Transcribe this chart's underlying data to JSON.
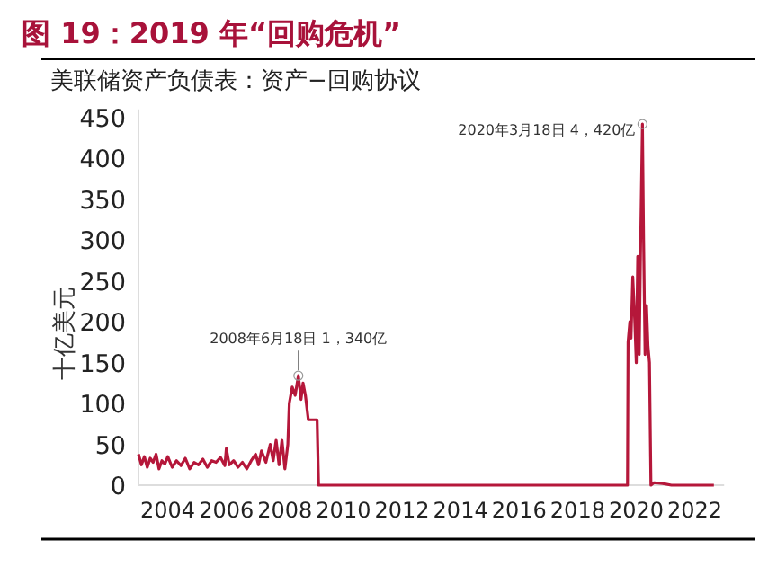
{
  "chart_data": {
    "type": "line",
    "title": "图 19：2019 年“回购危机”",
    "subtitle": "美联储资产负债表：资产−回购协议",
    "ylabel": "十亿美元",
    "x": [
      2003.0,
      2003.1,
      2003.2,
      2003.3,
      2003.4,
      2003.5,
      2003.6,
      2003.7,
      2003.8,
      2003.9,
      2004.0,
      2004.15,
      2004.3,
      2004.45,
      2004.6,
      2004.75,
      2004.9,
      2005.05,
      2005.2,
      2005.35,
      2005.5,
      2005.65,
      2005.8,
      2005.95,
      2006.0,
      2006.1,
      2006.25,
      2006.4,
      2006.55,
      2006.7,
      2006.85,
      2007.0,
      2007.1,
      2007.2,
      2007.35,
      2007.5,
      2007.6,
      2007.7,
      2007.8,
      2007.9,
      2008.0,
      2008.1,
      2008.15,
      2008.25,
      2008.35,
      2008.46,
      2008.55,
      2008.62,
      2008.7,
      2008.8,
      2009.0,
      2009.1,
      2009.15,
      2012.0,
      2016.0,
      2019.7,
      2019.72,
      2019.78,
      2019.82,
      2019.88,
      2019.95,
      2020.0,
      2020.05,
      2020.1,
      2020.15,
      2020.21,
      2020.25,
      2020.3,
      2020.35,
      2020.4,
      2020.45,
      2020.5,
      2020.6,
      2020.9,
      2021.2,
      2022.65
    ],
    "values": [
      38,
      25,
      35,
      22,
      33,
      28,
      38,
      20,
      30,
      26,
      35,
      22,
      30,
      24,
      33,
      20,
      28,
      25,
      32,
      22,
      30,
      28,
      34,
      24,
      45,
      25,
      30,
      22,
      28,
      20,
      30,
      38,
      25,
      42,
      28,
      50,
      30,
      55,
      25,
      55,
      20,
      50,
      100,
      120,
      110,
      134,
      105,
      125,
      110,
      80,
      80,
      80,
      0,
      0,
      0,
      0,
      175,
      200,
      180,
      255,
      200,
      150,
      280,
      160,
      300,
      442,
      300,
      160,
      220,
      170,
      150,
      0,
      3,
      2,
      0,
      0
    ],
    "color": "#b5173a",
    "xlim": [
      2003,
      2023
    ],
    "ylim": [
      0,
      460
    ],
    "xticks": [
      2004,
      2006,
      2008,
      2010,
      2012,
      2014,
      2016,
      2018,
      2020,
      2022
    ],
    "yticks": [
      0,
      50,
      100,
      150,
      200,
      250,
      300,
      350,
      400,
      450
    ],
    "annotations": [
      {
        "text": "2008年6月18日  1，340亿",
        "x": 2008.46,
        "y": 134
      },
      {
        "text": "2020年3月18日  4，420亿",
        "x": 2020.21,
        "y": 442
      }
    ]
  }
}
